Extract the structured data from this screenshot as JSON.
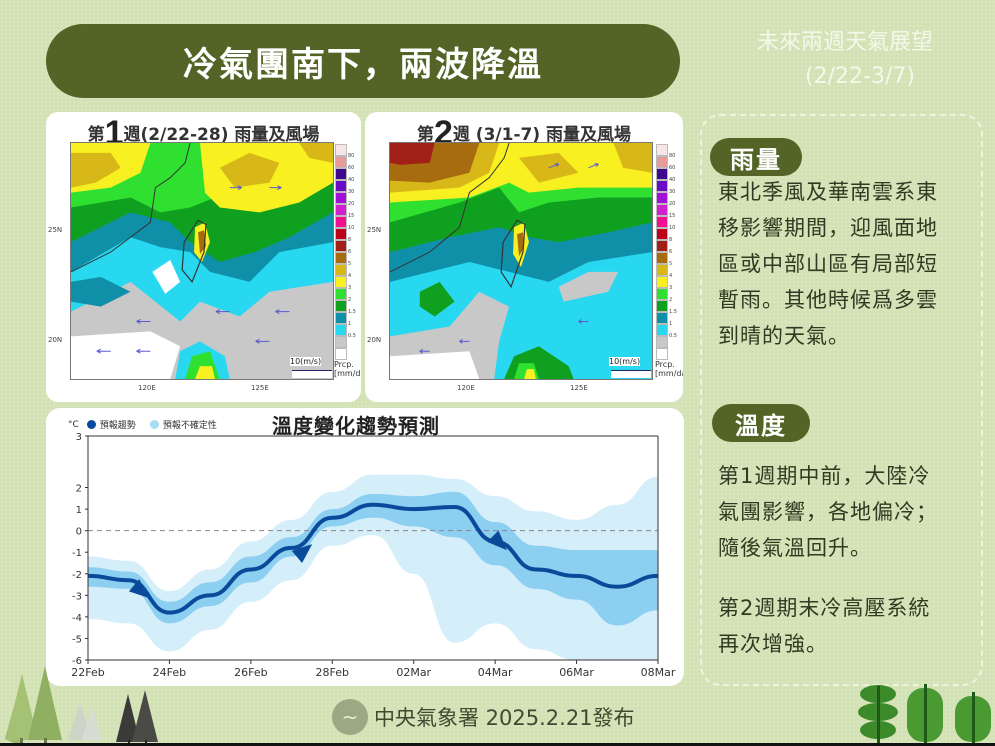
{
  "header": {
    "title": "冷氣團南下，兩波降溫",
    "outlook_title": "未來兩週天氣展望",
    "outlook_range": "(2/22-3/7)"
  },
  "maps": [
    {
      "title_prefix": "第",
      "week_number": "1",
      "title_suffix": "週(2/22-28) 雨量及風場",
      "lat_labels": [
        "25N",
        "20N"
      ],
      "lon_labels": [
        "120E",
        "125E"
      ],
      "wind_scale_label": "10(m/s)",
      "precip_label_1": "Prcp.",
      "precip_label_2": "[mm/day]"
    },
    {
      "title_prefix": "第",
      "week_number": "2",
      "title_suffix": "週 (3/1-7) 雨量及風場",
      "lat_labels": [
        "25N",
        "20N"
      ],
      "lon_labels": [
        "120E",
        "125E"
      ],
      "wind_scale_label": "10(m/s)",
      "precip_label_1": "Prcp.",
      "precip_label_2": "[mm/day]"
    }
  ],
  "colorbar": {
    "labels": [
      "80",
      "60",
      "40",
      "30",
      "20",
      "15",
      "10",
      "8",
      "6",
      "5",
      "4",
      "3",
      "2",
      "1.5",
      "1",
      "0.5"
    ],
    "colors": [
      "#f7e6e8",
      "#e89a9a",
      "#3d0a8f",
      "#6a0bc8",
      "#a010d8",
      "#d020d0",
      "#f01090",
      "#c00018",
      "#a02018",
      "#a86c10",
      "#d8b818",
      "#f8f020",
      "#30e030",
      "#10a020",
      "#1090a8",
      "#28d8f0",
      "#c8c8c8",
      "#ffffff"
    ]
  },
  "chart": {
    "title": "溫度變化趨勢預測",
    "unit": "°C",
    "legend_trend": "預報趨勢",
    "legend_uncertainty": "預報不確定性",
    "colors": {
      "trend": "#0a4a9a",
      "inner_band": "#8ccff0",
      "outer_band": "#d4eefa"
    }
  },
  "chart_data": {
    "type": "line",
    "title": "溫度變化趨勢預測",
    "xlabel": "",
    "ylabel": "°C",
    "ylim": [
      -6,
      3
    ],
    "yticks": [
      3,
      2,
      1,
      0,
      -1,
      -2,
      -3,
      -4,
      -5,
      -6
    ],
    "x_tick_labels": [
      "22Feb",
      "24Feb",
      "26Feb",
      "28Feb",
      "02Mar",
      "04Mar",
      "06Mar",
      "08Mar"
    ],
    "x": [
      "22Feb",
      "23Feb",
      "24Feb",
      "25Feb",
      "26Feb",
      "27Feb",
      "28Feb",
      "01Mar",
      "02Mar",
      "03Mar",
      "04Mar",
      "05Mar",
      "06Mar",
      "07Mar",
      "08Mar"
    ],
    "series": [
      {
        "name": "預報趨勢",
        "values": [
          -2.1,
          -2.3,
          -3.8,
          -3.0,
          -1.8,
          -0.8,
          0.6,
          1.2,
          1.0,
          1.1,
          -0.5,
          -1.8,
          -2.1,
          -2.6,
          -2.1
        ]
      },
      {
        "name": "預報不確定性 (inner upper)",
        "values": [
          -1.7,
          -1.9,
          -3.3,
          -2.4,
          -1.2,
          -0.3,
          1.0,
          1.7,
          1.6,
          1.8,
          0.4,
          -0.7,
          -0.9,
          -0.9,
          -0.9
        ]
      },
      {
        "name": "預報不確定性 (inner lower)",
        "values": [
          -2.6,
          -2.7,
          -4.3,
          -3.5,
          -2.4,
          -1.2,
          0.2,
          0.6,
          0.2,
          -0.3,
          -1.6,
          -2.7,
          -3.2,
          -4.4,
          -3.7
        ]
      },
      {
        "name": "預報不確定性 (outer upper)",
        "values": [
          -1.2,
          -1.4,
          -2.8,
          -1.8,
          -0.5,
          0.5,
          1.8,
          2.6,
          2.6,
          2.4,
          1.6,
          0.9,
          0.5,
          1.2,
          2.5
        ]
      },
      {
        "name": "預報不確定性 (outer lower)",
        "values": [
          -4.1,
          -4.3,
          -5.6,
          -4.6,
          -3.3,
          -2.3,
          -0.7,
          -0.2,
          -2.0,
          -5.2,
          -4.3,
          -5.5,
          -6.0,
          -6.0,
          -6.0
        ]
      }
    ],
    "reference_line": 0,
    "grid": false
  },
  "panel": {
    "rain_title": "雨量",
    "rain_text": [
      "東北季風及華南雲系東",
      "移影響期間，迎風面地",
      "區或中部山區有局部短",
      "暫雨。其他時候爲多雲",
      "到晴的天氣。"
    ],
    "temp_title": "溫度",
    "temp_text_1": [
      "第1週期中前，大陸冷",
      "氣團影響，各地偏冷；",
      "隨後氣溫回升。"
    ],
    "temp_text_2": [
      "第2週期末冷高壓系統",
      "再次增強。"
    ]
  },
  "footer": {
    "agency": "中央氣象署 2025.2.21發布"
  }
}
